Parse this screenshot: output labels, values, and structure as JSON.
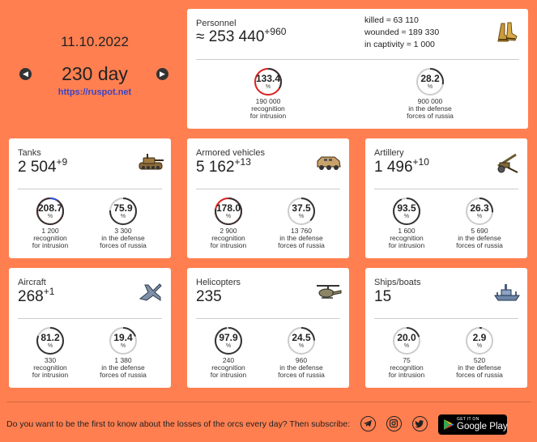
{
  "header": {
    "date": "11.10.2022",
    "day": "230 day",
    "site": "https://ruspot.net",
    "prev_icon": "arrow-left-icon",
    "next_icon": "arrow-right-icon"
  },
  "personnel": {
    "title": "Personnel",
    "value": "≈ 253 440",
    "delta": "+960",
    "killed": "killed ≈ 63 110",
    "wounded": "wounded ≈ 189 330",
    "captivity": "in captivity ≈ 1 000",
    "icon": "boots-icon",
    "stats": [
      {
        "value": "133.4",
        "pct": "%",
        "ratio": 1.334,
        "num": "190 000",
        "line1": "recognition",
        "line2": "for intrusion"
      },
      {
        "value": "28.2",
        "pct": "%",
        "ratio": 0.282,
        "num": "900 000",
        "line1": "in the defense",
        "line2": "forces of russia"
      }
    ]
  },
  "cards": [
    {
      "title": "Tanks",
      "value": "2 504",
      "delta": "+9",
      "icon": "tank-icon",
      "stats": [
        {
          "value": "208.7",
          "pct": "%",
          "ratio": 2.087,
          "num": "1 200",
          "line1": "recognition",
          "line2": "for intrusion"
        },
        {
          "value": "75.9",
          "pct": "%",
          "ratio": 0.759,
          "num": "3 300",
          "line1": "in the defense",
          "line2": "forces of russia"
        }
      ]
    },
    {
      "title": "Armored vehicles",
      "value": "5 162",
      "delta": "+13",
      "icon": "armored-vehicle-icon",
      "stats": [
        {
          "value": "178.0",
          "pct": "%",
          "ratio": 1.78,
          "num": "2 900",
          "line1": "recognition",
          "line2": "for intrusion"
        },
        {
          "value": "37.5",
          "pct": "%",
          "ratio": 0.375,
          "num": "13 760",
          "line1": "in the defense",
          "line2": "forces of russia"
        }
      ]
    },
    {
      "title": "Artillery",
      "value": "1 496",
      "delta": "+10",
      "icon": "artillery-icon",
      "stats": [
        {
          "value": "93.5",
          "pct": "%",
          "ratio": 0.935,
          "num": "1 600",
          "line1": "recognition",
          "line2": "for intrusion"
        },
        {
          "value": "26.3",
          "pct": "%",
          "ratio": 0.263,
          "num": "5 690",
          "line1": "in the defense",
          "line2": "forces of russia"
        }
      ]
    },
    {
      "title": "Aircraft",
      "value": "268",
      "delta": "+1",
      "icon": "aircraft-icon",
      "stats": [
        {
          "value": "81.2",
          "pct": "%",
          "ratio": 0.812,
          "num": "330",
          "line1": "recognition",
          "line2": "for intrusion"
        },
        {
          "value": "19.4",
          "pct": "%",
          "ratio": 0.194,
          "num": "1 380",
          "line1": "in the defense",
          "line2": "forces of russia"
        }
      ]
    },
    {
      "title": "Helicopters",
      "value": "235",
      "delta": "",
      "icon": "helicopter-icon",
      "stats": [
        {
          "value": "97.9",
          "pct": "%",
          "ratio": 0.979,
          "num": "240",
          "line1": "recognition",
          "line2": "for intrusion"
        },
        {
          "value": "24.5",
          "pct": "%",
          "ratio": 0.245,
          "num": "960",
          "line1": "in the defense",
          "line2": "forces of russia"
        }
      ]
    },
    {
      "title": "Ships/boats",
      "value": "15",
      "delta": "",
      "icon": "ship-icon",
      "stats": [
        {
          "value": "20.0",
          "pct": "%",
          "ratio": 0.2,
          "num": "75",
          "line1": "recognition",
          "line2": "for intrusion"
        },
        {
          "value": "2.9",
          "pct": "%",
          "ratio": 0.029,
          "num": "520",
          "line1": "in the defense",
          "line2": "forces of russia"
        }
      ]
    }
  ],
  "footer": {
    "text": "Do you want to be the first to know about the losses of the orcs every day? Then subscribe:",
    "social": [
      "telegram-icon",
      "instagram-icon",
      "twitter-icon"
    ],
    "gplay_small": "GET IT ON",
    "gplay_big": "Google Play"
  },
  "colors": {
    "background": "#ff7f50",
    "gauge_track": "#cccccc",
    "gauge_fill": "#333333",
    "gauge_over": "#e02020",
    "gauge_over2": "#3355dd",
    "link": "#3a44c6"
  }
}
